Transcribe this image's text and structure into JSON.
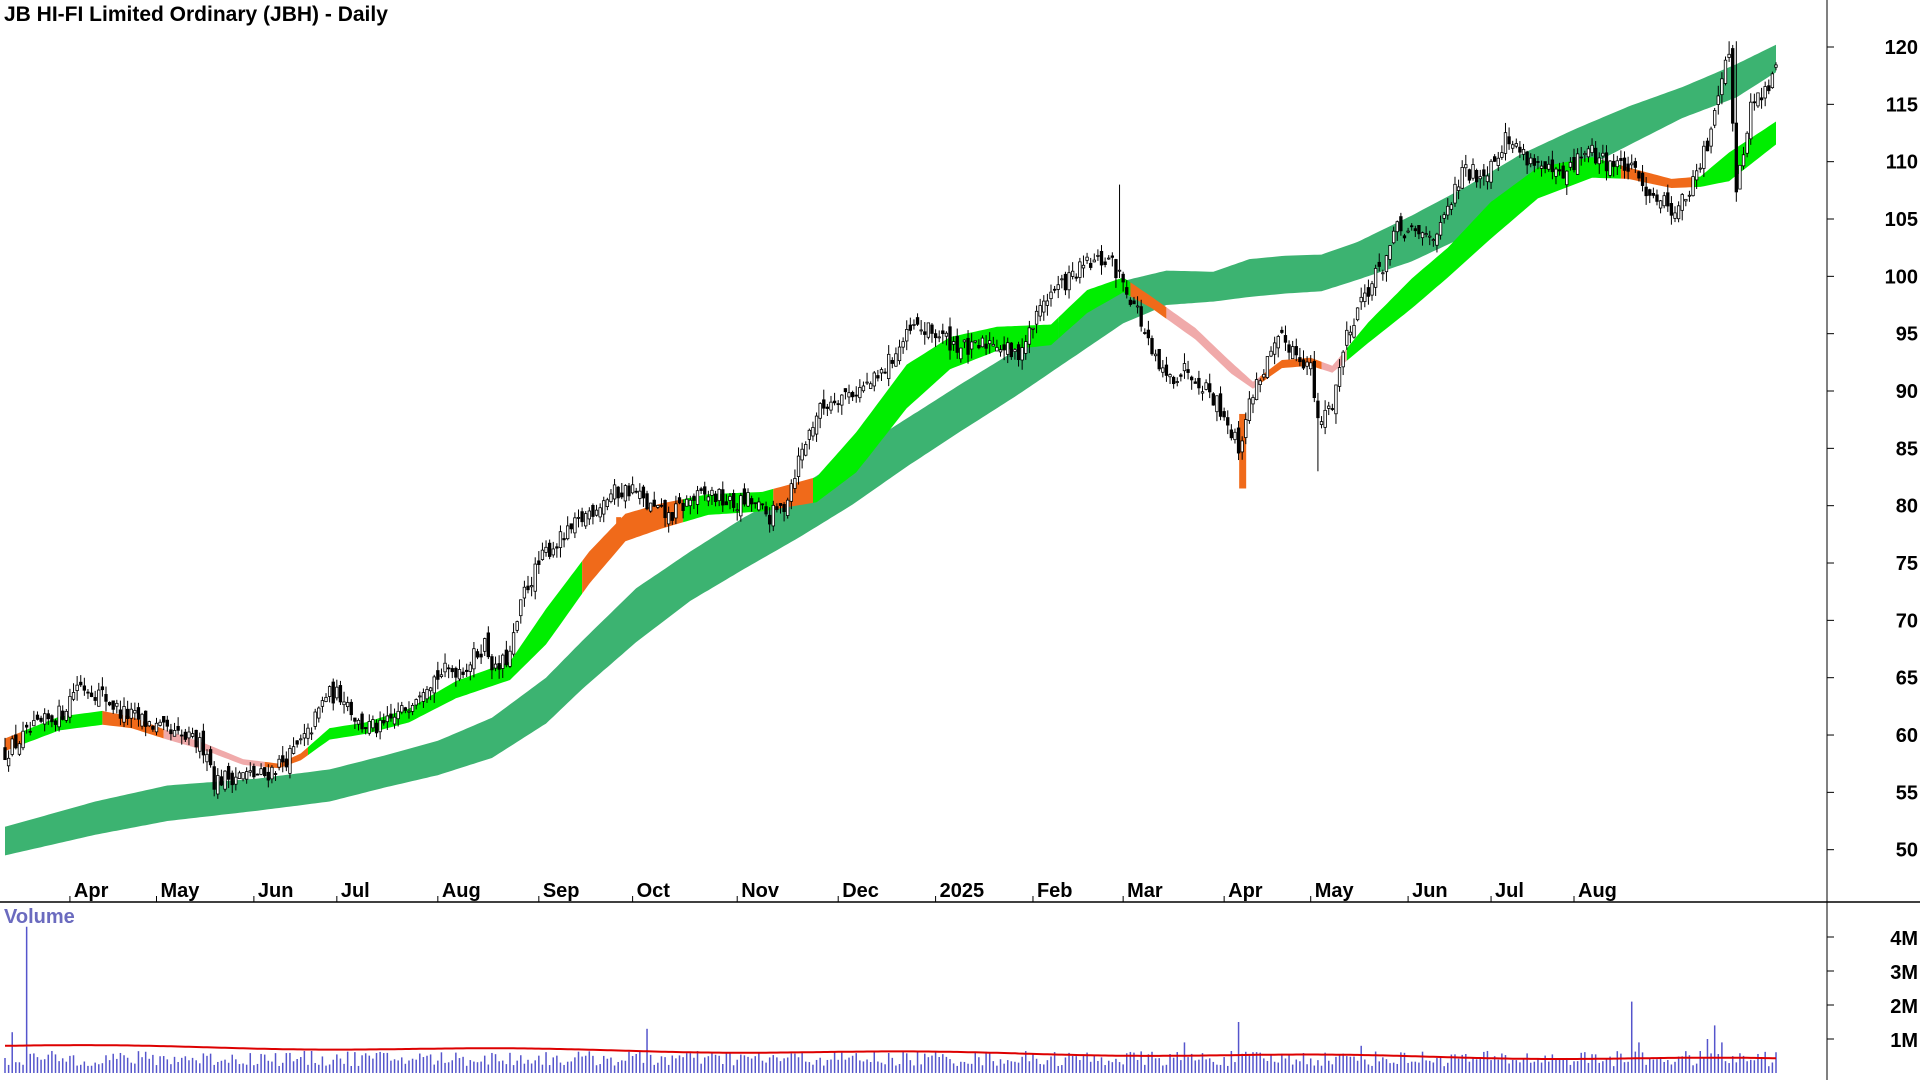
{
  "chart_data": [
    {
      "type": "candlestick",
      "title": "JB HI-FI Limited Ordinary (JBH) - Daily",
      "x_tick_labels": [
        "Apr",
        "May",
        "Jun",
        "Jul",
        "Aug",
        "Sep",
        "Oct",
        "Nov",
        "Dec",
        "2025",
        "Feb",
        "Mar",
        "Apr",
        "May",
        "Jun",
        "Jul",
        "Aug"
      ],
      "y_ticks": [
        50,
        55,
        60,
        65,
        70,
        75,
        80,
        85,
        90,
        95,
        100,
        105,
        110,
        115,
        120
      ],
      "ylim": [
        48.5,
        123
      ],
      "grid": false,
      "colors": {
        "short_ma_up": "#00ee00",
        "short_ma_down": "#f0aaaa",
        "ma_transition": "#f06a1a",
        "long_ma_band": "#3cb371",
        "candle_up_fill": "#ffffff",
        "candle_down_fill": "#000000",
        "volume_bar": "#5555cc",
        "volume_ma": "#dd0000"
      },
      "close_anchors": [
        [
          0,
          58.5
        ],
        [
          8,
          60.5
        ],
        [
          16,
          62
        ],
        [
          20,
          64.5
        ],
        [
          27,
          63.5
        ],
        [
          32,
          62
        ],
        [
          40,
          61
        ],
        [
          46,
          60
        ],
        [
          52,
          59.5
        ],
        [
          56,
          58.8
        ],
        [
          58,
          56
        ],
        [
          64,
          56.5
        ],
        [
          72,
          56.5
        ],
        [
          79,
          58.2
        ],
        [
          84,
          60
        ],
        [
          89,
          63.5
        ],
        [
          94,
          63.5
        ],
        [
          98,
          61
        ],
        [
          104,
          60.5
        ],
        [
          110,
          62
        ],
        [
          116,
          64.5
        ],
        [
          122,
          65.5
        ],
        [
          128,
          66
        ],
        [
          133,
          68
        ],
        [
          136,
          65.5
        ],
        [
          140,
          67
        ],
        [
          144,
          72.5
        ],
        [
          150,
          76
        ],
        [
          156,
          77.5
        ],
        [
          162,
          79.5
        ],
        [
          168,
          81
        ],
        [
          174,
          81.5
        ],
        [
          178,
          80
        ],
        [
          184,
          79
        ],
        [
          190,
          80.5
        ],
        [
          196,
          81
        ],
        [
          202,
          80
        ],
        [
          206,
          80.5
        ],
        [
          212,
          79
        ],
        [
          216,
          80
        ],
        [
          220,
          84
        ],
        [
          225,
          88
        ],
        [
          230,
          89.5
        ],
        [
          236,
          90
        ],
        [
          242,
          91
        ],
        [
          246,
          93
        ],
        [
          252,
          95.5
        ],
        [
          258,
          95
        ],
        [
          264,
          94
        ],
        [
          268,
          93.5
        ],
        [
          274,
          94.5
        ],
        [
          280,
          93
        ],
        [
          284,
          95
        ],
        [
          288,
          98
        ],
        [
          294,
          99.5
        ],
        [
          300,
          101
        ],
        [
          306,
          101.5
        ],
        [
          310,
          99.5
        ],
        [
          314,
          97
        ],
        [
          318,
          93
        ],
        [
          322,
          91
        ],
        [
          328,
          92
        ],
        [
          334,
          90
        ],
        [
          338,
          88
        ],
        [
          342,
          85
        ],
        [
          346,
          90
        ],
        [
          350,
          92.5
        ],
        [
          354,
          94.5
        ],
        [
          358,
          93.5
        ],
        [
          362,
          92
        ],
        [
          364,
          87
        ],
        [
          368,
          89
        ],
        [
          372,
          95
        ],
        [
          376,
          98
        ],
        [
          382,
          101
        ],
        [
          386,
          104
        ],
        [
          392,
          103.5
        ],
        [
          398,
          104
        ],
        [
          404,
          109
        ],
        [
          410,
          109
        ],
        [
          416,
          112
        ],
        [
          422,
          110.5
        ],
        [
          428,
          109
        ],
        [
          432,
          108.5
        ],
        [
          438,
          111
        ],
        [
          444,
          110
        ],
        [
          450,
          109.5
        ],
        [
          454,
          108
        ],
        [
          458,
          107
        ],
        [
          462,
          106
        ],
        [
          464,
          106
        ],
        [
          468,
          108
        ],
        [
          472,
          111.5
        ],
        [
          475,
          116.5
        ],
        [
          478,
          120
        ],
        [
          480,
          107
        ],
        [
          484,
          115
        ],
        [
          488,
          116
        ],
        [
          491,
          118
        ]
      ],
      "short_ma_band": [
        [
          0,
          59.7,
          58.6
        ],
        [
          15,
          61.6,
          60.4
        ],
        [
          27,
          62.1,
          60.9
        ],
        [
          35,
          61.6,
          60.6
        ],
        [
          45,
          60.4,
          59.6
        ],
        [
          56,
          59.2,
          58.6
        ],
        [
          66,
          57.9,
          57.4
        ],
        [
          76,
          57.5,
          57.1
        ],
        [
          82,
          58.4,
          57.8
        ],
        [
          90,
          60.6,
          59.6
        ],
        [
          100,
          61.1,
          60.1
        ],
        [
          112,
          62.3,
          61.1
        ],
        [
          125,
          64.7,
          63.2
        ],
        [
          140,
          66.4,
          64.8
        ],
        [
          150,
          71,
          67.9
        ],
        [
          162,
          76,
          73.2
        ],
        [
          172,
          79.3,
          76.9
        ],
        [
          182,
          80.2,
          78
        ],
        [
          195,
          81,
          79.2
        ],
        [
          210,
          81.2,
          79.5
        ],
        [
          225,
          82.5,
          80.3
        ],
        [
          236,
          86.4,
          82.9
        ],
        [
          250,
          92.3,
          88.5
        ],
        [
          262,
          94.7,
          91.9
        ],
        [
          275,
          95.6,
          93.5
        ],
        [
          290,
          95.8,
          94
        ],
        [
          300,
          98.8,
          96.8
        ],
        [
          310,
          99.9,
          98.6
        ],
        [
          318,
          98.2,
          97.2
        ],
        [
          330,
          95.5,
          94.5
        ],
        [
          340,
          92.5,
          91.5
        ],
        [
          346,
          90.8,
          90.2
        ],
        [
          354,
          92.7,
          92
        ],
        [
          362,
          92.9,
          92.2
        ],
        [
          368,
          92.2,
          91.6
        ],
        [
          378,
          96,
          94.2
        ],
        [
          390,
          99.8,
          97.2
        ],
        [
          400,
          102.5,
          99.9
        ],
        [
          412,
          106.5,
          103.3
        ],
        [
          425,
          109.5,
          106.8
        ],
        [
          440,
          110.4,
          108.6
        ],
        [
          450,
          109.5,
          108.5
        ],
        [
          462,
          108.5,
          107.7
        ],
        [
          470,
          108.7,
          107.8
        ],
        [
          478,
          110.8,
          108.3
        ],
        [
          491,
          113.5,
          111.5
        ]
      ],
      "short_ma_segments": [
        [
          0,
          5,
          "transition"
        ],
        [
          5,
          27,
          "up"
        ],
        [
          27,
          44,
          "transition"
        ],
        [
          44,
          50,
          "down"
        ],
        [
          50,
          72,
          "down"
        ],
        [
          72,
          84,
          "transition"
        ],
        [
          84,
          160,
          "up"
        ],
        [
          160,
          188,
          "transition"
        ],
        [
          188,
          213,
          "up"
        ],
        [
          213,
          224,
          "transition"
        ],
        [
          224,
          292,
          "up"
        ],
        [
          292,
          312,
          "up"
        ],
        [
          312,
          322,
          "transition"
        ],
        [
          322,
          348,
          "down"
        ],
        [
          348,
          365,
          "transition"
        ],
        [
          365,
          372,
          "down"
        ],
        [
          372,
          448,
          "up"
        ],
        [
          448,
          468,
          "transition"
        ],
        [
          468,
          491,
          "up"
        ]
      ],
      "long_ma_band": [
        [
          0,
          52,
          49.5
        ],
        [
          25,
          54.2,
          51.3
        ],
        [
          45,
          55.6,
          52.5
        ],
        [
          70,
          56.2,
          53.4
        ],
        [
          90,
          57,
          54.2
        ],
        [
          105,
          58.2,
          55.4
        ],
        [
          120,
          59.5,
          56.5
        ],
        [
          135,
          61.5,
          58
        ],
        [
          150,
          65,
          61
        ],
        [
          160,
          68.2,
          64
        ],
        [
          175,
          72.8,
          68.1
        ],
        [
          190,
          76,
          71.7
        ],
        [
          205,
          79,
          74.5
        ],
        [
          220,
          81.6,
          77.2
        ],
        [
          235,
          84.6,
          80.1
        ],
        [
          250,
          87.6,
          83.4
        ],
        [
          265,
          90.6,
          86.5
        ],
        [
          280,
          93.5,
          89.5
        ],
        [
          295,
          96.6,
          92.7
        ],
        [
          310,
          99.6,
          95.9
        ],
        [
          322,
          100.5,
          97.5
        ],
        [
          335,
          100.4,
          97.8
        ],
        [
          345,
          101.5,
          98.2
        ],
        [
          355,
          101.8,
          98.5
        ],
        [
          365,
          101.9,
          98.7
        ],
        [
          375,
          103,
          99.7
        ],
        [
          390,
          105.3,
          101.3
        ],
        [
          405,
          107.8,
          103.5
        ],
        [
          420,
          110.6,
          106.3
        ],
        [
          435,
          112.8,
          109
        ],
        [
          450,
          114.8,
          111.4
        ],
        [
          465,
          116.5,
          113.8
        ],
        [
          480,
          118.5,
          115.6
        ],
        [
          491,
          120.2,
          117.8
        ]
      ]
    },
    {
      "type": "bar",
      "title": "Volume",
      "y_tick_labels": [
        "4M",
        "3M",
        "2M",
        "1M"
      ],
      "y_ticks": [
        4000000,
        3000000,
        2000000,
        1000000
      ],
      "ylim": [
        0,
        4500000
      ],
      "spikes": [
        [
          2,
          1200000
        ],
        [
          6,
          4300000
        ],
        [
          178,
          1300000
        ],
        [
          342,
          1500000
        ],
        [
          451,
          2100000
        ],
        [
          453,
          900000
        ],
        [
          472,
          1000000
        ],
        [
          474,
          1400000
        ],
        [
          327,
          900000
        ],
        [
          376,
          800000
        ],
        [
          476,
          900000
        ]
      ],
      "base_volume_range": [
        200000,
        650000
      ],
      "volume_ma_start": 800000,
      "volume_ma_end": 400000
    }
  ]
}
